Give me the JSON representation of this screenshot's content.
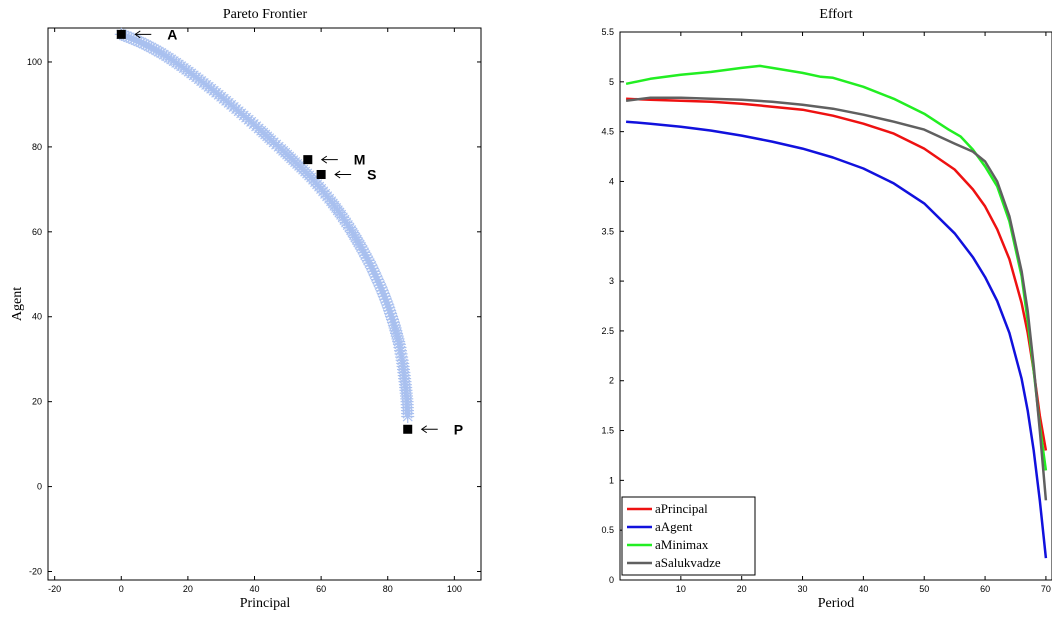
{
  "chart_data": [
    {
      "type": "scatter",
      "title": "Pareto Frontier",
      "xlabel": "Principal",
      "ylabel": "Agent",
      "xlim": [
        -22,
        108
      ],
      "ylim": [
        -22,
        108
      ],
      "xticks": [
        -20,
        0,
        20,
        40,
        60,
        80,
        100
      ],
      "yticks": [
        -20,
        0,
        20,
        40,
        60,
        80,
        100
      ],
      "frontier_color": "#a9c0ef",
      "frontier": [
        [
          0,
          106.5
        ],
        [
          3,
          105.6
        ],
        [
          6,
          104.6
        ],
        [
          9,
          103.4
        ],
        [
          12,
          102.1
        ],
        [
          15,
          100.6
        ],
        [
          18,
          99.0
        ],
        [
          21,
          97.3
        ],
        [
          24,
          95.5
        ],
        [
          27,
          93.7
        ],
        [
          30,
          91.8
        ],
        [
          33,
          89.9
        ],
        [
          36,
          87.9
        ],
        [
          39,
          85.9
        ],
        [
          42,
          83.8
        ],
        [
          45,
          81.6
        ],
        [
          48,
          79.5
        ],
        [
          51,
          77.3
        ],
        [
          54,
          75.1
        ],
        [
          57,
          72.8
        ],
        [
          60,
          70.1
        ],
        [
          63,
          67.2
        ],
        [
          66,
          64.0
        ],
        [
          69,
          60.4
        ],
        [
          72,
          56.4
        ],
        [
          75,
          52.0
        ],
        [
          78,
          46.8
        ],
        [
          80,
          42.8
        ],
        [
          82,
          38.0
        ],
        [
          83.5,
          33.5
        ],
        [
          84.5,
          29.0
        ],
        [
          85.3,
          24.0
        ],
        [
          85.8,
          20.0
        ],
        [
          86,
          16.5
        ]
      ],
      "points": [
        {
          "label": "A",
          "x": 0,
          "y": 106.5
        },
        {
          "label": "M",
          "x": 56,
          "y": 77
        },
        {
          "label": "S",
          "x": 60,
          "y": 73.5
        },
        {
          "label": "P",
          "x": 86,
          "y": 13.5
        }
      ]
    },
    {
      "type": "line",
      "title": "Effort",
      "xlabel": "Period",
      "ylabel": "",
      "xlim": [
        0,
        71
      ],
      "ylim": [
        0,
        5.5
      ],
      "xticks": [
        10,
        20,
        30,
        40,
        50,
        60,
        70
      ],
      "yticks": [
        0,
        0.5,
        1,
        1.5,
        2,
        2.5,
        3,
        3.5,
        4,
        4.5,
        5,
        5.5
      ],
      "legend_position": "bottom-left",
      "series": [
        {
          "name": "aPrincipal",
          "color": "#ee1111",
          "x": [
            1,
            5,
            10,
            15,
            20,
            25,
            30,
            35,
            40,
            45,
            50,
            55,
            58,
            60,
            62,
            64,
            66,
            67,
            68,
            69,
            70
          ],
          "y": [
            4.83,
            4.82,
            4.81,
            4.8,
            4.78,
            4.75,
            4.72,
            4.66,
            4.58,
            4.48,
            4.33,
            4.12,
            3.92,
            3.75,
            3.52,
            3.22,
            2.78,
            2.48,
            2.1,
            1.65,
            1.3
          ]
        },
        {
          "name": "aAgent",
          "color": "#1111dd",
          "x": [
            1,
            5,
            10,
            15,
            20,
            25,
            30,
            35,
            40,
            45,
            50,
            55,
            58,
            60,
            62,
            64,
            66,
            67,
            68,
            69,
            70
          ],
          "y": [
            4.6,
            4.58,
            4.55,
            4.51,
            4.46,
            4.4,
            4.33,
            4.24,
            4.13,
            3.98,
            3.78,
            3.48,
            3.24,
            3.04,
            2.8,
            2.48,
            2.02,
            1.7,
            1.3,
            0.8,
            0.22
          ]
        },
        {
          "name": "aMinimax",
          "color": "#22ee22",
          "x": [
            1,
            5,
            10,
            15,
            20,
            23,
            25,
            30,
            33,
            35,
            40,
            45,
            50,
            54,
            56,
            58,
            60,
            62,
            64,
            66,
            67,
            68,
            69,
            70
          ],
          "y": [
            4.98,
            5.03,
            5.07,
            5.1,
            5.14,
            5.16,
            5.14,
            5.09,
            5.05,
            5.04,
            4.95,
            4.83,
            4.68,
            4.52,
            4.45,
            4.32,
            4.15,
            3.95,
            3.6,
            3.05,
            2.6,
            2.1,
            1.55,
            1.1
          ]
        },
        {
          "name": "aSalukvadze",
          "color": "#606060",
          "x": [
            1,
            5,
            10,
            15,
            20,
            25,
            30,
            35,
            40,
            45,
            50,
            55,
            58,
            60,
            62,
            64,
            66,
            67,
            68,
            69,
            70
          ],
          "y": [
            4.81,
            4.84,
            4.84,
            4.83,
            4.82,
            4.8,
            4.77,
            4.73,
            4.67,
            4.6,
            4.52,
            4.38,
            4.3,
            4.2,
            4.0,
            3.65,
            3.1,
            2.7,
            2.15,
            1.5,
            0.8
          ]
        }
      ]
    }
  ]
}
